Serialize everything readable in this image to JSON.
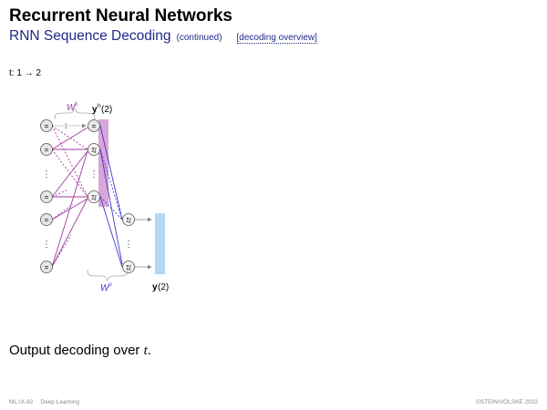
{
  "slide": {
    "title": "Recurrent Neural Networks",
    "subtitle": "RNN Sequence Decoding",
    "subtitle_note": "(continued)",
    "overview_link": "[decoding overview]",
    "timestep_label": "t: 1 → 2"
  },
  "diagram": {
    "wh_label": "W",
    "wh_superscript": "h",
    "wo_label": "W",
    "wo_superscript": "o",
    "yh_label": "y",
    "yh_superscript": "h",
    "yh_arg": "(2)",
    "y_label": "y",
    "y_arg": "(2)",
    "bias_value": "1",
    "identity_symbol": "=",
    "sum_symbol": "Σ∫",
    "ellipsis": "⋮",
    "colors": {
      "hidden": "#a23a9e",
      "hidden_band": "#d9a6d6",
      "output": "#3a3ad0",
      "output_band": "#b6d6f5",
      "arrow": "#888888"
    }
  },
  "caption": {
    "text": "Output decoding over ",
    "var": "t",
    "end": "."
  },
  "footer": {
    "course": "ML:IX-82",
    "topic": "Deep Learning",
    "copyright": "©STEIN/VÖLSKE 2022"
  }
}
